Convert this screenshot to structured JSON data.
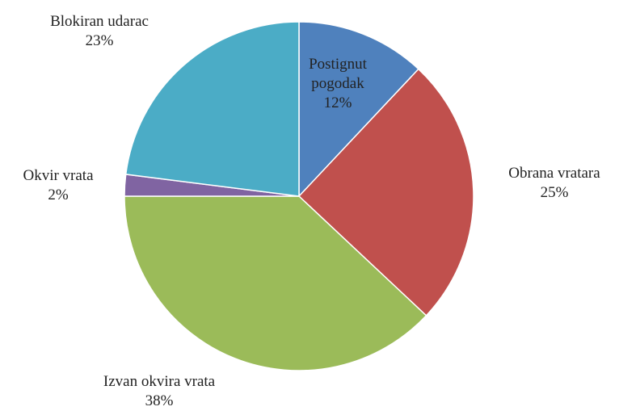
{
  "chart_data": {
    "type": "pie",
    "categories": [
      "Postignut pogodak",
      "Obrana vratara",
      "Izvan okvira vrata",
      "Okvir vrata",
      "Blokiran udarac"
    ],
    "values": [
      12,
      25,
      38,
      2,
      23
    ],
    "value_labels": [
      "12%",
      "25%",
      "38%",
      "2%",
      "23%"
    ],
    "colors": [
      "#4f81bd",
      "#c0504d",
      "#9bbb59",
      "#8064a2",
      "#4bacc6"
    ]
  }
}
